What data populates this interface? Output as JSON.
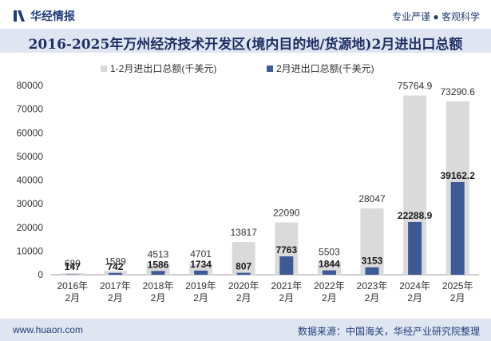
{
  "header": {
    "brand_name": "华经情报",
    "tagline": "专业严谨 ● 客观科学"
  },
  "title": "2016-2025年万州经济技术开发区(境内目的地/货源地)2月进出口总额",
  "footer": {
    "website": "www.huaon.com",
    "source": "数据来源：中国海关，华经产业研究院整理"
  },
  "colors": {
    "series1": "#dadada",
    "series2": "#3e5a96",
    "brand": "#1f3d7a"
  },
  "chart_data": {
    "type": "bar",
    "categories": [
      "2016年\n2月",
      "2017年\n2月",
      "2018年\n2月",
      "2019年\n2月",
      "2020年\n2月",
      "2021年\n2月",
      "2022年\n2月",
      "2023年\n2月",
      "2024年\n2月",
      "2025年\n2月"
    ],
    "series": [
      {
        "name": "1-2月进出口总额(千美元)",
        "values": [
          680,
          1589,
          4513,
          4701,
          13817,
          22090,
          5503,
          28047,
          75764.9,
          73290.6
        ]
      },
      {
        "name": "2月进出口总额(千美元)",
        "values": [
          147,
          742,
          1586,
          1734,
          807,
          7763,
          1844,
          3153,
          22288.9,
          39162.2
        ]
      }
    ],
    "ylim": [
      0,
      80000
    ],
    "yticks": [
      0,
      10000,
      20000,
      30000,
      40000,
      50000,
      60000,
      70000,
      80000
    ],
    "legend_position": "top-center"
  }
}
